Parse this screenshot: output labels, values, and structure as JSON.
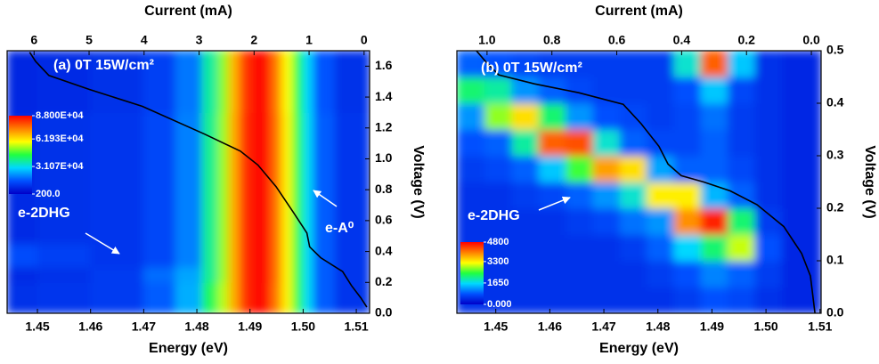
{
  "chart_data": [
    {
      "type": "heatmap",
      "xlabel": "Energy (eV)",
      "x2label": "Current (mA)",
      "ylabel": "Voltage (V)",
      "xlim": [
        1.4443,
        1.5125
      ],
      "x2lim": [
        6.49,
        -0.1
      ],
      "ylim": [
        0,
        1.7
      ],
      "xticks": [
        1.45,
        1.46,
        1.47,
        1.48,
        1.49,
        {
          "value": 1.5,
          "label": "1.50"
        },
        1.51
      ],
      "x2ticks": [
        6,
        5,
        4,
        3,
        2,
        1,
        0
      ],
      "yticks": [
        {
          "value": 0,
          "label": "0.0"
        },
        0.2,
        0.4,
        0.6,
        0.8,
        {
          "value": 1,
          "label": "1.0"
        },
        1.2,
        1.4,
        1.6
      ],
      "colorscale": [
        "#0000c8",
        "#0050ff",
        "#00d8ff",
        "#20ff40",
        "#ffff00",
        "#ff8000",
        "#ff0000"
      ],
      "zlim": [
        200,
        88000
      ],
      "zticks": [
        {
          "value": 88000,
          "label": "8.800E+04"
        },
        {
          "value": 61930,
          "label": "6.193E+04"
        },
        {
          "value": 31070,
          "label": "3.107E+04"
        },
        {
          "value": 200,
          "label": "200.0"
        }
      ],
      "x_edges": [
        1.4443,
        1.45,
        1.46,
        1.47,
        1.476,
        1.481,
        1.484,
        1.486,
        1.488,
        1.49,
        1.494,
        1.496,
        1.498,
        1.5,
        1.502,
        1.506,
        1.5125
      ],
      "y_edges": [
        0,
        0.2,
        0.3,
        0.45,
        0.7,
        1.0,
        1.3,
        1.7
      ],
      "z": [
        [
          9000,
          10000,
          11000,
          16000,
          25000,
          42000,
          54000,
          68000,
          82000,
          86000,
          74000,
          60000,
          45000,
          30000,
          16000,
          10000
        ],
        [
          8000,
          9000,
          11000,
          18000,
          24000,
          38000,
          52000,
          68000,
          82000,
          87000,
          75000,
          60000,
          45000,
          30000,
          16000,
          10000
        ],
        [
          14000,
          12000,
          10000,
          13000,
          20000,
          38000,
          52000,
          68000,
          82000,
          87000,
          75000,
          60000,
          45000,
          30000,
          16000,
          10000
        ],
        [
          8000,
          9000,
          10000,
          13000,
          20000,
          38000,
          52000,
          68000,
          82000,
          87000,
          75000,
          60000,
          45000,
          30000,
          16000,
          10000
        ],
        [
          8000,
          9000,
          10000,
          13000,
          20000,
          38000,
          52000,
          68000,
          82000,
          87000,
          75000,
          60000,
          45000,
          30000,
          16000,
          10000
        ],
        [
          8000,
          9000,
          10000,
          13000,
          20000,
          38000,
          52000,
          68000,
          82000,
          87000,
          75000,
          60000,
          45000,
          30000,
          16000,
          10000
        ],
        [
          7000,
          8000,
          9000,
          12000,
          19000,
          37000,
          51000,
          67000,
          81000,
          86000,
          74000,
          59000,
          44000,
          29000,
          15000,
          9000
        ]
      ],
      "curve": {
        "color": "#000000",
        "axis": "x2",
        "x": [
          6.08,
          5.97,
          5.73,
          5.0,
          4.03,
          2.9,
          2.25,
          1.93,
          1.6,
          1.28,
          1.04,
          0.99,
          0.79,
          0.39,
          0.23,
          0.06,
          -0.05
        ],
        "values": [
          1.69,
          1.63,
          1.54,
          1.45,
          1.34,
          1.16,
          1.05,
          0.96,
          0.82,
          0.65,
          0.52,
          0.43,
          0.36,
          0.27,
          0.18,
          0.1,
          0.04
        ]
      },
      "annotations": [
        "(a) 0T 15W/cm²",
        "e-2DHG",
        "e-A⁰"
      ]
    },
    {
      "type": "heatmap",
      "xlabel": "Energy (eV)",
      "x2label": "Current (mA)",
      "ylabel": "Voltage (V)",
      "xlim": [
        1.4428,
        1.5102
      ],
      "x2lim": [
        1.093,
        -0.03
      ],
      "ylim": [
        0,
        0.5
      ],
      "xticks": [
        1.45,
        1.46,
        1.47,
        1.48,
        1.49,
        {
          "value": 1.5,
          "label": "1.50"
        },
        1.51
      ],
      "x2ticks": [
        {
          "value": 1,
          "label": "1.0"
        },
        0.8,
        0.6,
        0.4,
        0.2,
        {
          "value": 0,
          "label": "0.0"
        }
      ],
      "yticks": [
        {
          "value": 0,
          "label": "0.0"
        },
        0.1,
        0.2,
        0.3,
        0.4,
        0.5
      ],
      "colorscale": [
        "#0000c8",
        "#0050ff",
        "#00d8ff",
        "#20ff40",
        "#ffff00",
        "#ff8000",
        "#ff0000"
      ],
      "zlim": [
        0,
        4800
      ],
      "zticks": [
        4800,
        3300,
        1650,
        {
          "value": 0,
          "label": "0.000"
        }
      ],
      "x_edges": [
        1.4428,
        1.448,
        1.453,
        1.458,
        1.463,
        1.468,
        1.473,
        1.478,
        1.483,
        1.488,
        1.493,
        1.498,
        1.503,
        1.5102
      ],
      "y_edges": [
        0,
        0.05,
        0.1,
        0.15,
        0.2,
        0.25,
        0.3,
        0.35,
        0.4,
        0.45,
        0.5
      ],
      "z": [
        [
          500,
          500,
          500,
          500,
          500,
          500,
          500,
          500,
          600,
          800,
          700,
          500,
          400
        ],
        [
          500,
          500,
          500,
          500,
          500,
          500,
          500,
          600,
          800,
          1100,
          900,
          600,
          400
        ],
        [
          500,
          500,
          500,
          500,
          500,
          500,
          600,
          900,
          1600,
          2200,
          3000,
          800,
          400
        ],
        [
          500,
          500,
          500,
          500,
          600,
          700,
          1000,
          1200,
          3900,
          4600,
          2200,
          600,
          400
        ],
        [
          500,
          500,
          600,
          700,
          900,
          1200,
          1800,
          3300,
          3300,
          1400,
          900,
          500,
          400
        ],
        [
          600,
          700,
          900,
          1500,
          2500,
          3800,
          3400,
          1300,
          900,
          900,
          700,
          500,
          400
        ],
        [
          800,
          900,
          2000,
          4200,
          4300,
          1800,
          900,
          700,
          700,
          900,
          600,
          500,
          400
        ],
        [
          1200,
          2800,
          3400,
          2200,
          1200,
          800,
          700,
          600,
          700,
          1000,
          600,
          500,
          400
        ],
        [
          2200,
          2000,
          1200,
          900,
          700,
          600,
          600,
          600,
          800,
          1500,
          700,
          500,
          400
        ],
        [
          900,
          800,
          700,
          600,
          600,
          600,
          600,
          600,
          1800,
          4200,
          1500,
          500,
          400
        ]
      ],
      "curve": {
        "color": "#000000",
        "axis": "x2",
        "x": [
          1.033,
          1.005,
          0.964,
          0.854,
          0.717,
          0.58,
          0.525,
          0.47,
          0.442,
          0.401,
          0.332,
          0.25,
          0.168,
          0.085,
          0.03,
          0.003,
          -0.011
        ],
        "values": [
          0.5,
          0.48,
          0.454,
          0.437,
          0.42,
          0.398,
          0.361,
          0.318,
          0.284,
          0.262,
          0.25,
          0.233,
          0.207,
          0.165,
          0.114,
          0.071,
          0
        ]
      },
      "annotations": [
        "(b) 0T 15W/cm²",
        "e-2DHG"
      ]
    }
  ]
}
